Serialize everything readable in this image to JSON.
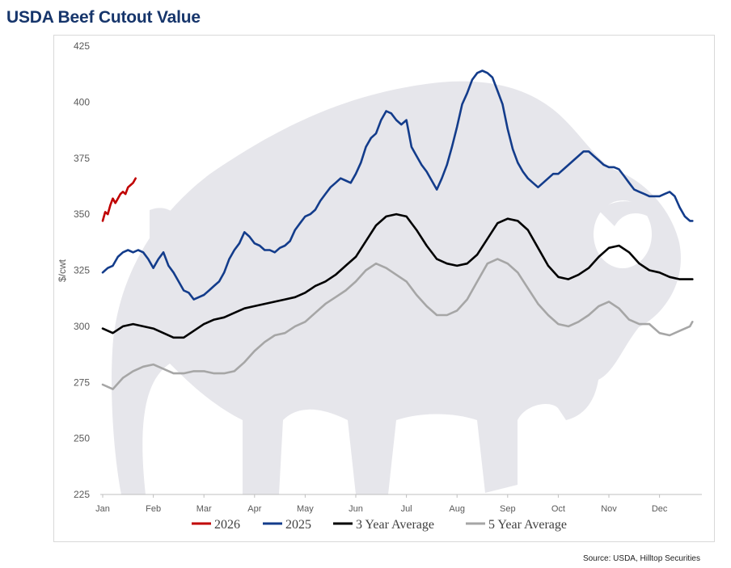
{
  "chart_data": {
    "type": "line",
    "title": "USDA Beef Cutout Value",
    "ylabel": "$/cwt",
    "xlabel": "",
    "ylim": [
      225,
      425
    ],
    "yticks": [
      225,
      250,
      275,
      300,
      325,
      350,
      375,
      400,
      425
    ],
    "categories": [
      "Jan",
      "Feb",
      "Mar",
      "Apr",
      "May",
      "Jun",
      "Jul",
      "Aug",
      "Sep",
      "Oct",
      "Nov",
      "Dec"
    ],
    "x_unit": "month index (0 = Jan, 11.65 = end of Dec)",
    "grid": false,
    "legend_position": "bottom",
    "series": [
      {
        "name": "2026",
        "color": "#c00000",
        "x": [
          0,
          0.05,
          0.1,
          0.15,
          0.2,
          0.25,
          0.3,
          0.35,
          0.4,
          0.45,
          0.5,
          0.55,
          0.6,
          0.65
        ],
        "values": [
          347,
          351,
          350,
          354,
          357,
          355,
          357,
          359,
          360,
          359,
          362,
          363,
          364,
          366
        ]
      },
      {
        "name": "2025",
        "color": "#133c8b",
        "x": [
          0,
          0.1,
          0.2,
          0.3,
          0.4,
          0.5,
          0.6,
          0.7,
          0.8,
          0.9,
          1.0,
          1.1,
          1.2,
          1.3,
          1.4,
          1.5,
          1.6,
          1.7,
          1.8,
          1.9,
          2.0,
          2.1,
          2.2,
          2.3,
          2.4,
          2.5,
          2.6,
          2.7,
          2.8,
          2.9,
          3.0,
          3.1,
          3.2,
          3.3,
          3.4,
          3.5,
          3.6,
          3.7,
          3.8,
          3.9,
          4.0,
          4.1,
          4.2,
          4.3,
          4.4,
          4.5,
          4.6,
          4.7,
          4.8,
          4.9,
          5.0,
          5.1,
          5.2,
          5.3,
          5.4,
          5.5,
          5.6,
          5.7,
          5.8,
          5.9,
          6.0,
          6.1,
          6.2,
          6.3,
          6.4,
          6.5,
          6.6,
          6.7,
          6.8,
          6.9,
          7.0,
          7.1,
          7.2,
          7.3,
          7.4,
          7.5,
          7.6,
          7.7,
          7.8,
          7.9,
          8.0,
          8.1,
          8.2,
          8.3,
          8.4,
          8.5,
          8.6,
          8.7,
          8.8,
          8.9,
          9.0,
          9.1,
          9.2,
          9.3,
          9.4,
          9.5,
          9.6,
          9.7,
          9.8,
          9.9,
          10.0,
          10.1,
          10.2,
          10.3,
          10.4,
          10.5,
          10.6,
          10.7,
          10.8,
          10.9,
          11.0,
          11.1,
          11.2,
          11.3,
          11.4,
          11.5,
          11.6,
          11.65
        ],
        "values": [
          324,
          326,
          327,
          331,
          333,
          334,
          333,
          334,
          333,
          330,
          326,
          330,
          333,
          327,
          324,
          320,
          316,
          315,
          312,
          313,
          314,
          316,
          318,
          320,
          324,
          330,
          334,
          337,
          342,
          340,
          337,
          336,
          334,
          334,
          333,
          335,
          336,
          338,
          343,
          346,
          349,
          350,
          352,
          356,
          359,
          362,
          364,
          366,
          365,
          364,
          368,
          373,
          380,
          384,
          386,
          392,
          396,
          395,
          392,
          390,
          392,
          380,
          376,
          372,
          369,
          365,
          361,
          366,
          372,
          380,
          389,
          399,
          404,
          410,
          413,
          414,
          413,
          411,
          405,
          399,
          388,
          379,
          373,
          369,
          366,
          364,
          362,
          364,
          366,
          368,
          368,
          370,
          372,
          374,
          376,
          378,
          378,
          376,
          374,
          372,
          371,
          371,
          370,
          367,
          364,
          361,
          360,
          359,
          358,
          358,
          358,
          359,
          360,
          358,
          353,
          349,
          347,
          347
        ]
      },
      {
        "name": "3 Year Average",
        "color": "#000000",
        "x": [
          0,
          0.2,
          0.4,
          0.6,
          0.8,
          1.0,
          1.2,
          1.4,
          1.6,
          1.8,
          2.0,
          2.2,
          2.4,
          2.6,
          2.8,
          3.0,
          3.2,
          3.4,
          3.6,
          3.8,
          4.0,
          4.2,
          4.4,
          4.6,
          4.8,
          5.0,
          5.2,
          5.4,
          5.6,
          5.8,
          6.0,
          6.2,
          6.4,
          6.6,
          6.8,
          7.0,
          7.2,
          7.4,
          7.6,
          7.8,
          8.0,
          8.2,
          8.4,
          8.6,
          8.8,
          9.0,
          9.2,
          9.4,
          9.6,
          9.8,
          10.0,
          10.2,
          10.4,
          10.6,
          10.8,
          11.0,
          11.2,
          11.4,
          11.6,
          11.65
        ],
        "values": [
          299,
          297,
          300,
          301,
          300,
          299,
          297,
          295,
          295,
          298,
          301,
          303,
          304,
          306,
          308,
          309,
          310,
          311,
          312,
          313,
          315,
          318,
          320,
          323,
          327,
          331,
          338,
          345,
          349,
          350,
          349,
          343,
          336,
          330,
          328,
          327,
          328,
          332,
          339,
          346,
          348,
          347,
          343,
          335,
          327,
          322,
          321,
          323,
          326,
          331,
          335,
          336,
          333,
          328,
          325,
          324,
          322,
          321,
          321,
          321
        ]
      },
      {
        "name": "5 Year Average",
        "color": "#a6a6a6",
        "x": [
          0,
          0.2,
          0.4,
          0.6,
          0.8,
          1.0,
          1.2,
          1.4,
          1.6,
          1.8,
          2.0,
          2.2,
          2.4,
          2.6,
          2.8,
          3.0,
          3.2,
          3.4,
          3.6,
          3.8,
          4.0,
          4.2,
          4.4,
          4.6,
          4.8,
          5.0,
          5.2,
          5.4,
          5.6,
          5.8,
          6.0,
          6.2,
          6.4,
          6.6,
          6.8,
          7.0,
          7.2,
          7.4,
          7.6,
          7.8,
          8.0,
          8.2,
          8.4,
          8.6,
          8.8,
          9.0,
          9.2,
          9.4,
          9.6,
          9.8,
          10.0,
          10.2,
          10.4,
          10.6,
          10.8,
          11.0,
          11.2,
          11.4,
          11.6,
          11.65
        ],
        "values": [
          274,
          272,
          277,
          280,
          282,
          283,
          281,
          279,
          279,
          280,
          280,
          279,
          279,
          280,
          284,
          289,
          293,
          296,
          297,
          300,
          302,
          306,
          310,
          313,
          316,
          320,
          325,
          328,
          326,
          323,
          320,
          314,
          309,
          305,
          305,
          307,
          312,
          320,
          328,
          330,
          328,
          324,
          317,
          310,
          305,
          301,
          300,
          302,
          305,
          309,
          311,
          308,
          303,
          301,
          301,
          297,
          296,
          298,
          300,
          302
        ]
      }
    ]
  },
  "source": "Source: USDA, Hilltop Securities"
}
